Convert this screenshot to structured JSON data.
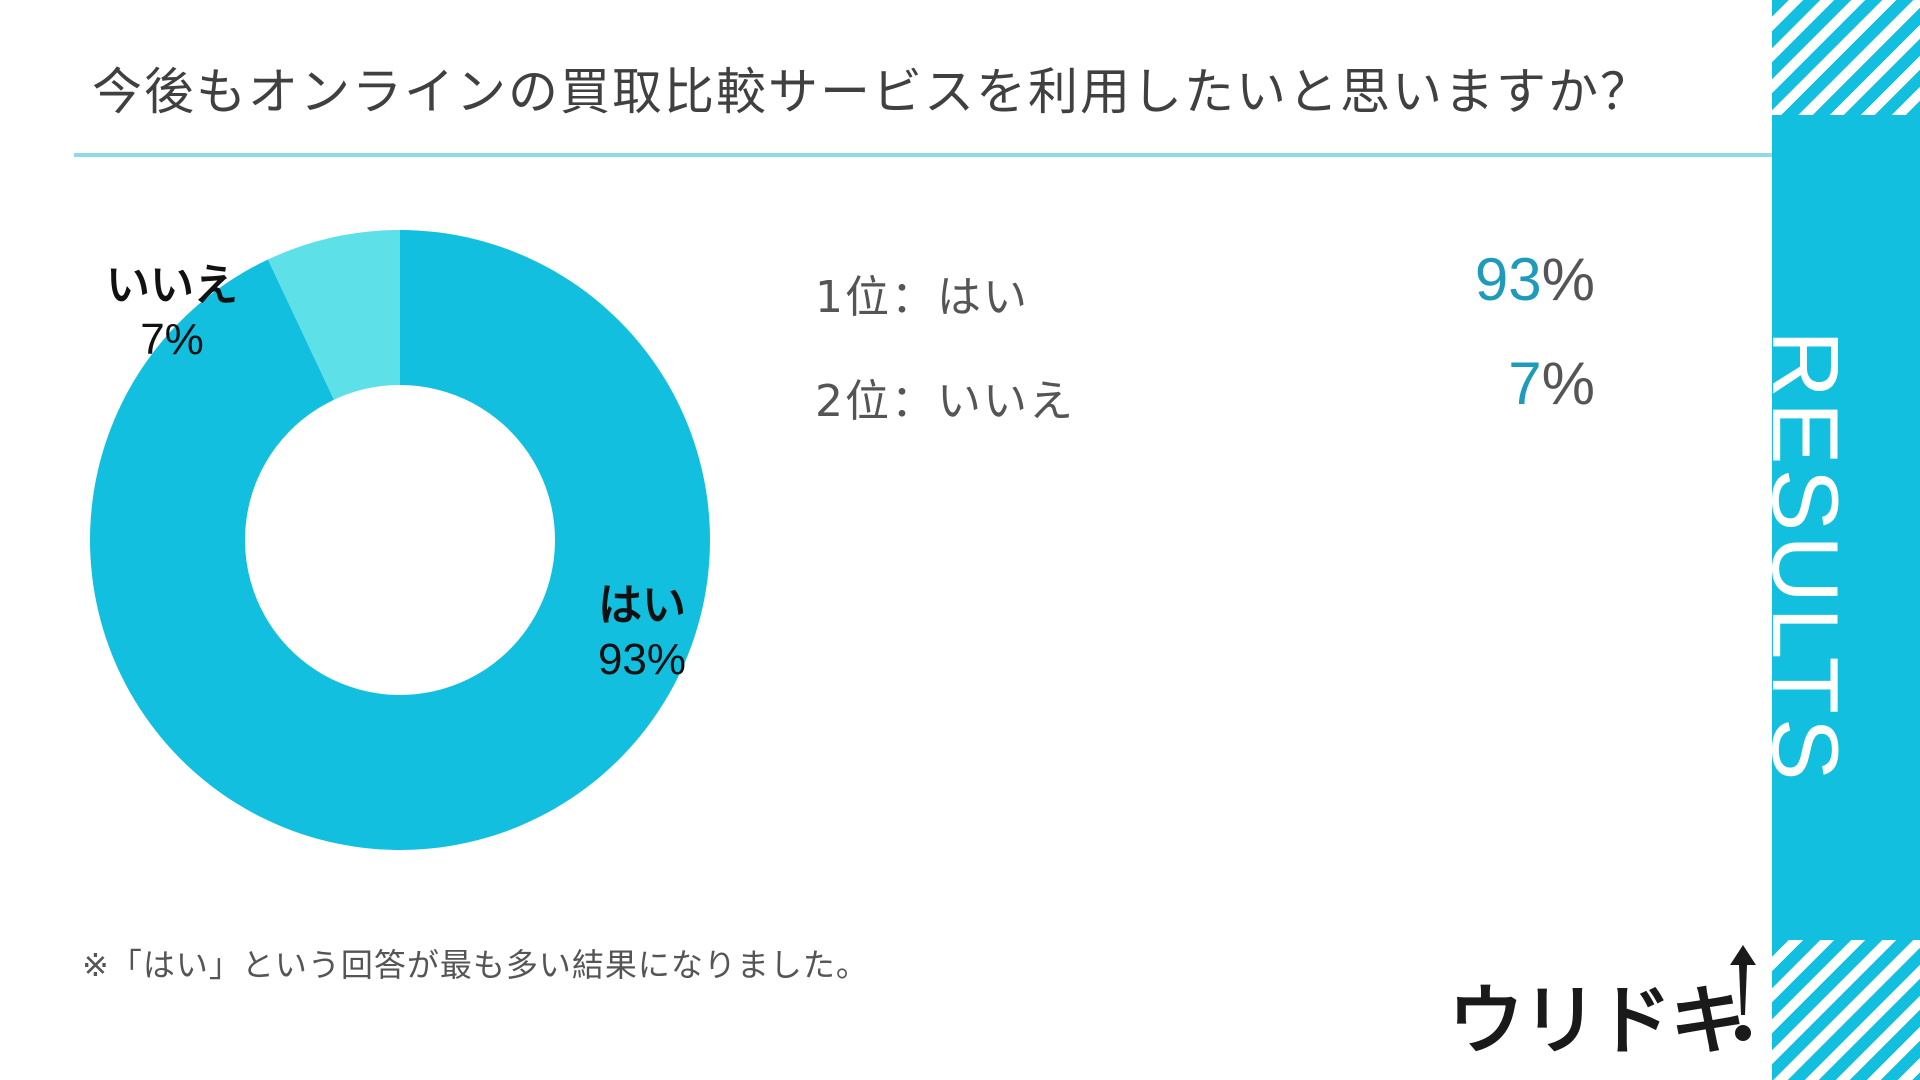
{
  "title": "今後もオンラインの買取比較サービスを利用したいと思いますか？",
  "side_label": "RESULTS",
  "colors": {
    "accent": "#12bfdf",
    "slice_yes": "#12bfdf",
    "slice_no": "#5ee0e8",
    "rank_number": "#1e9bbb"
  },
  "chart_data": {
    "type": "pie",
    "donut": true,
    "title": "今後もオンラインの買取比較サービスを利用したいと思いますか？",
    "slices": [
      {
        "label": "はい",
        "value": 93,
        "value_label": "93%",
        "color": "#12bfdf"
      },
      {
        "label": "いいえ",
        "value": 7,
        "value_label": "7%",
        "color": "#5ee0e8"
      }
    ],
    "start": "12 o'clock",
    "direction": "clockwise"
  },
  "ranking": [
    {
      "label": "1位：はい",
      "number": "93",
      "unit": "%"
    },
    {
      "label": "2位：いいえ",
      "number": "7",
      "unit": "%"
    }
  ],
  "footnote": "※「はい」という回答が最も多い結果になりました。",
  "logo": {
    "text": "ウリドキ",
    "mark": "up-arrow-icon"
  }
}
